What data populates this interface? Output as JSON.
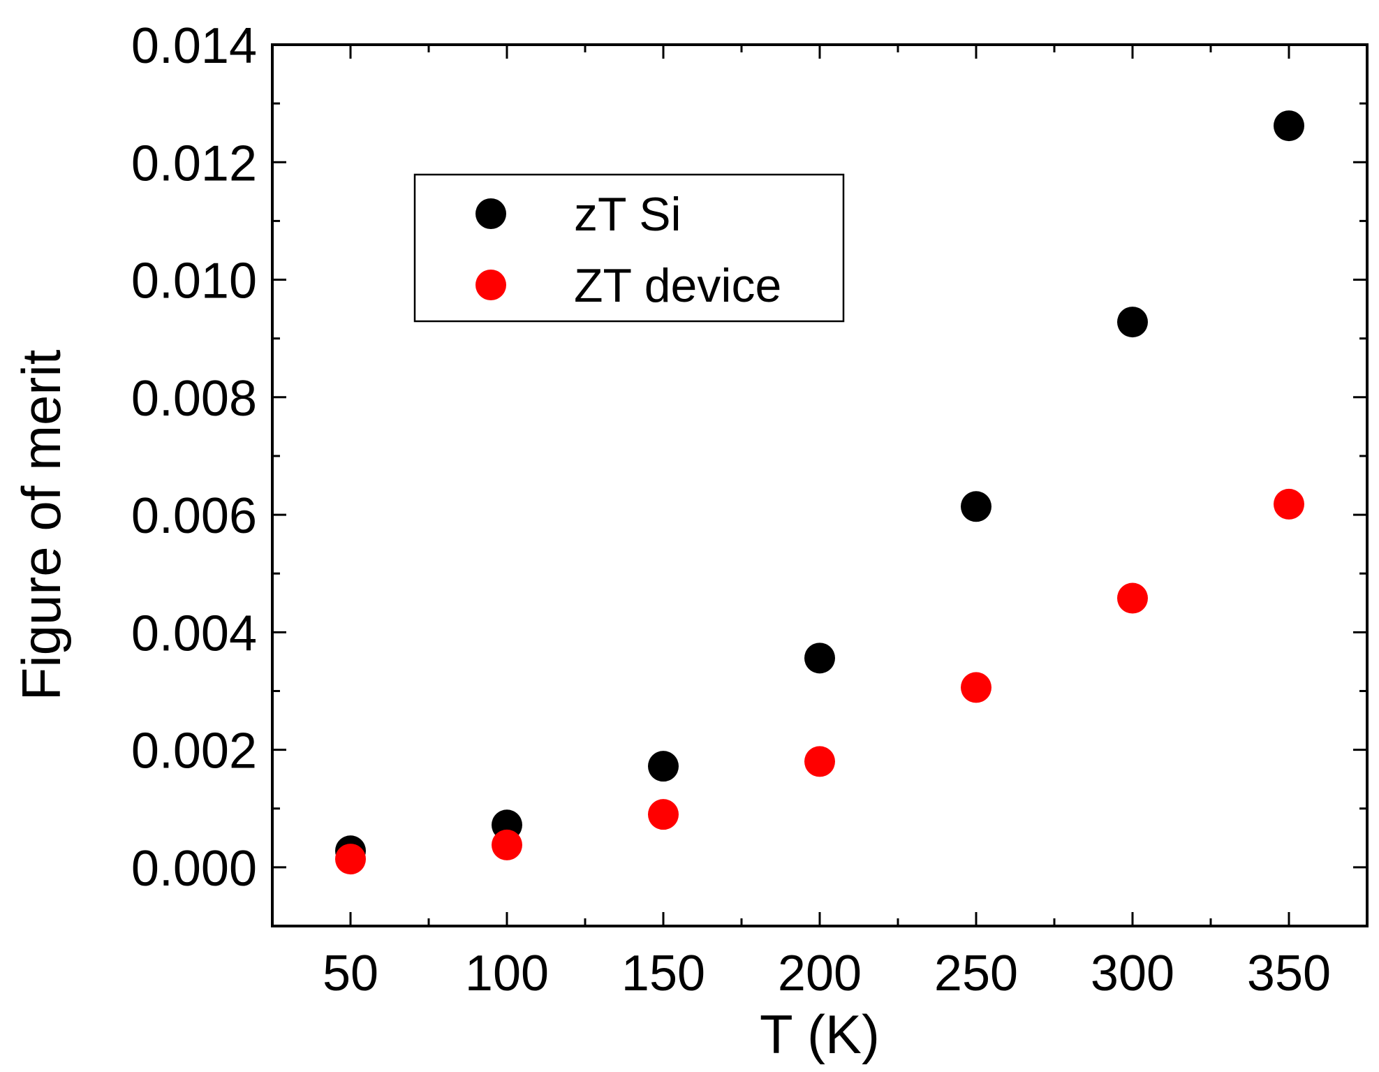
{
  "chart_data": {
    "type": "scatter",
    "title": "",
    "xlabel": "T (K)",
    "ylabel": "Figure of merit",
    "xlim": [
      25,
      375
    ],
    "ylim": [
      -0.001,
      0.014
    ],
    "xticks": [
      50,
      100,
      150,
      200,
      250,
      300,
      350
    ],
    "xtick_labels": [
      "50",
      "100",
      "150",
      "200",
      "250",
      "300",
      "350"
    ],
    "yticks": [
      0.0,
      0.002,
      0.004,
      0.006,
      0.008,
      0.01,
      0.012,
      0.014
    ],
    "ytick_labels": [
      "0.000",
      "0.002",
      "0.004",
      "0.006",
      "0.008",
      "0.010",
      "0.012",
      "0.014"
    ],
    "grid": false,
    "legend_position": "upper-left-center",
    "series": [
      {
        "name": "zT Si",
        "color": "#000000",
        "x": [
          50,
          100,
          150,
          200,
          250,
          300,
          350
        ],
        "y": [
          0.00028,
          0.00072,
          0.00172,
          0.00356,
          0.00614,
          0.00928,
          0.01262
        ]
      },
      {
        "name": "ZT device",
        "color": "#ff0000",
        "x": [
          50,
          100,
          150,
          200,
          250,
          300,
          350
        ],
        "y": [
          0.00014,
          0.00038,
          0.0009,
          0.0018,
          0.00306,
          0.00458,
          0.00618
        ]
      }
    ]
  }
}
